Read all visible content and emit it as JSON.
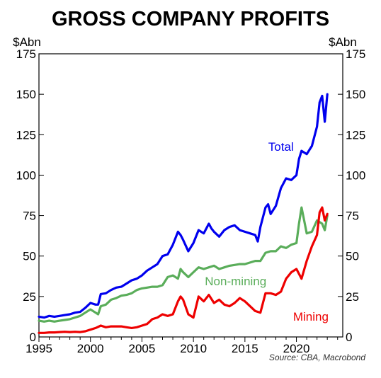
{
  "chart_data": {
    "type": "line",
    "title": "GROSS COMPANY PROFITS",
    "y_unit_left": "$Abn",
    "y_unit_right": "$Abn",
    "source": "Source: CBA, Macrobond",
    "xlim": [
      1995,
      2024.5
    ],
    "ylim": [
      0,
      175
    ],
    "x_ticks": [
      1995,
      2000,
      2005,
      2010,
      2015,
      2020
    ],
    "y_ticks": [
      0,
      25,
      50,
      75,
      100,
      125,
      150,
      175
    ],
    "grid": false,
    "legend": "inline labels",
    "series": [
      {
        "name": "Total",
        "color": "#0000ee",
        "x": [
          1995.0,
          1995.5,
          1996.0,
          1996.5,
          1997.0,
          1997.5,
          1998.0,
          1998.5,
          1999.0,
          1999.5,
          2000.0,
          2000.5,
          2000.75,
          2001.0,
          2001.5,
          2002.0,
          2002.5,
          2003.0,
          2003.5,
          2004.0,
          2004.5,
          2005.0,
          2005.5,
          2006.0,
          2006.5,
          2007.0,
          2007.5,
          2008.0,
          2008.5,
          2008.75,
          2009.0,
          2009.5,
          2010.0,
          2010.5,
          2011.0,
          2011.5,
          2011.75,
          2012.0,
          2012.5,
          2013.0,
          2013.5,
          2014.0,
          2014.5,
          2015.0,
          2015.5,
          2016.0,
          2016.25,
          2016.5,
          2017.0,
          2017.25,
          2017.5,
          2018.0,
          2018.5,
          2019.0,
          2019.5,
          2020.0,
          2020.25,
          2020.5,
          2021.0,
          2021.5,
          2022.0,
          2022.25,
          2022.5,
          2022.75,
          2023.0
        ],
        "values": [
          12.5,
          12,
          13,
          12.5,
          13,
          13.5,
          14,
          15,
          15.5,
          18,
          21,
          20,
          20,
          26.5,
          27,
          29,
          30.5,
          31,
          33,
          35,
          36,
          38,
          41,
          43,
          45,
          50,
          51,
          57,
          65,
          63,
          60,
          53,
          58,
          66,
          64,
          70,
          67,
          65,
          62,
          66,
          68,
          69,
          66,
          65,
          64,
          63,
          59,
          68,
          80,
          82,
          76,
          81,
          92,
          98,
          97,
          100,
          110,
          115,
          113,
          118,
          130,
          145,
          149,
          133,
          150
        ]
      },
      {
        "name": "Non-mining",
        "color": "#5aad5a",
        "x": [
          1995.0,
          1995.5,
          1996.0,
          1996.5,
          1997.0,
          1997.5,
          1998.0,
          1998.5,
          1999.0,
          1999.5,
          2000.0,
          2000.5,
          2000.75,
          2001.0,
          2001.5,
          2002.0,
          2002.5,
          2003.0,
          2003.5,
          2004.0,
          2004.5,
          2005.0,
          2005.5,
          2006.0,
          2006.5,
          2007.0,
          2007.5,
          2008.0,
          2008.5,
          2008.75,
          2009.0,
          2009.5,
          2010.0,
          2010.5,
          2011.0,
          2011.5,
          2012.0,
          2012.5,
          2013.0,
          2013.5,
          2014.0,
          2014.5,
          2015.0,
          2015.5,
          2016.0,
          2016.5,
          2017.0,
          2017.5,
          2018.0,
          2018.5,
          2019.0,
          2019.5,
          2020.0,
          2020.25,
          2020.5,
          2020.75,
          2021.0,
          2021.5,
          2022.0,
          2022.25,
          2022.5,
          2022.75,
          2023.0
        ],
        "values": [
          10,
          9.5,
          10,
          9.5,
          10,
          10.5,
          11,
          12,
          13,
          15,
          17,
          15,
          14,
          19,
          20,
          23,
          24,
          25.5,
          26,
          27,
          29,
          30,
          30.5,
          31,
          31,
          32,
          37,
          38,
          36,
          42,
          40,
          37,
          40,
          43,
          42,
          43,
          44,
          42,
          43,
          44,
          44.5,
          45,
          45,
          46,
          47,
          47,
          52,
          53,
          53,
          56,
          55,
          57,
          58,
          70,
          80,
          72,
          64,
          65,
          72,
          71,
          70,
          66,
          75
        ]
      },
      {
        "name": "Mining",
        "color": "#ee0000",
        "x": [
          1995.0,
          1995.5,
          1996.0,
          1996.5,
          1997.0,
          1997.5,
          1998.0,
          1998.5,
          1999.0,
          1999.5,
          2000.0,
          2000.5,
          2001.0,
          2001.5,
          2002.0,
          2002.5,
          2003.0,
          2003.5,
          2004.0,
          2004.5,
          2005.0,
          2005.5,
          2006.0,
          2006.5,
          2007.0,
          2007.5,
          2008.0,
          2008.5,
          2008.75,
          2009.0,
          2009.5,
          2010.0,
          2010.5,
          2011.0,
          2011.5,
          2012.0,
          2012.5,
          2013.0,
          2013.5,
          2014.0,
          2014.5,
          2015.0,
          2015.5,
          2016.0,
          2016.5,
          2017.0,
          2017.5,
          2018.0,
          2018.5,
          2019.0,
          2019.5,
          2020.0,
          2020.5,
          2021.0,
          2021.5,
          2022.0,
          2022.25,
          2022.5,
          2022.75,
          2023.0
        ],
        "values": [
          2.5,
          2.5,
          2.8,
          2.8,
          3,
          3.2,
          3,
          3.2,
          3,
          3.5,
          4.5,
          5.5,
          7,
          6,
          6.5,
          6.5,
          6.5,
          6,
          5.5,
          6,
          7,
          8,
          11,
          12,
          14,
          13,
          14,
          22,
          25,
          23,
          14,
          12,
          25,
          22,
          26,
          21,
          23,
          20,
          19,
          21,
          24,
          22,
          19,
          16,
          15,
          27,
          27,
          26,
          28,
          36,
          40,
          42,
          36,
          47,
          56,
          63,
          77,
          80,
          72,
          76
        ]
      }
    ],
    "annotations": [
      {
        "text": "Total",
        "x": 2018.5,
        "y": 115
      },
      {
        "text": "Non-mining",
        "x": 2014.1,
        "y": 32
      },
      {
        "text": "Mining",
        "x": 2021.4,
        "y": 10
      }
    ]
  }
}
